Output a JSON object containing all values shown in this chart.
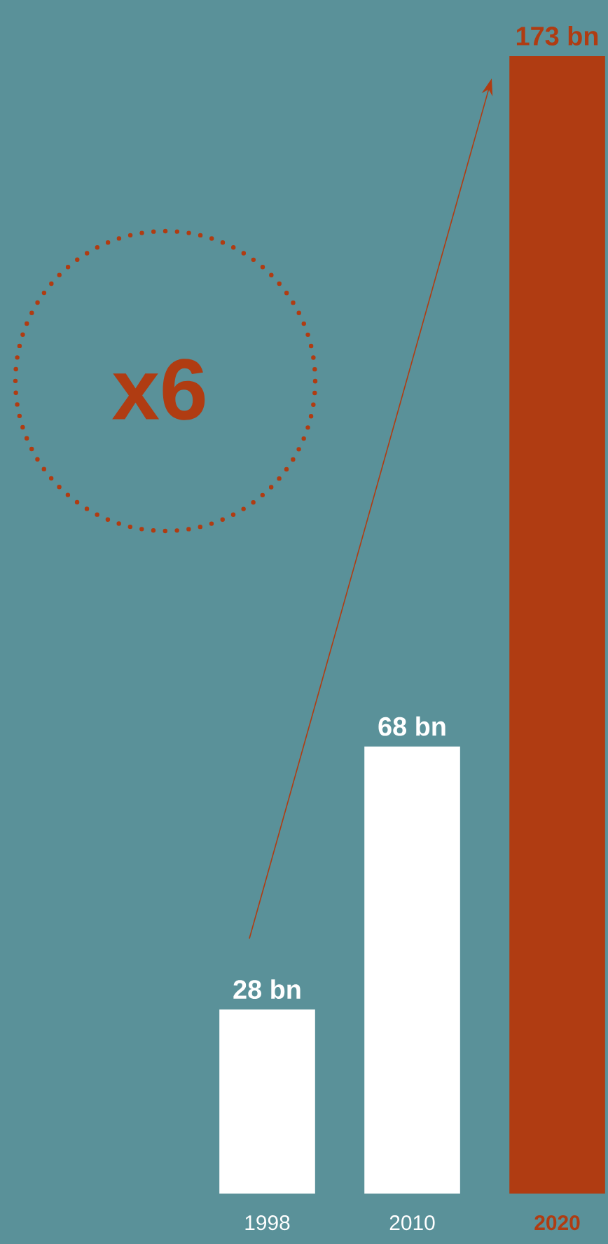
{
  "chart_data": {
    "type": "bar",
    "categories": [
      "1998",
      "2010",
      "2020"
    ],
    "values": [
      28,
      68,
      173
    ],
    "colors": [
      "#ffffff",
      "#ffffff",
      "#b03c12"
    ],
    "value_labels": [
      "28 bn",
      "68 bn",
      "173 bn"
    ],
    "annotations": [
      "x6"
    ]
  }
}
